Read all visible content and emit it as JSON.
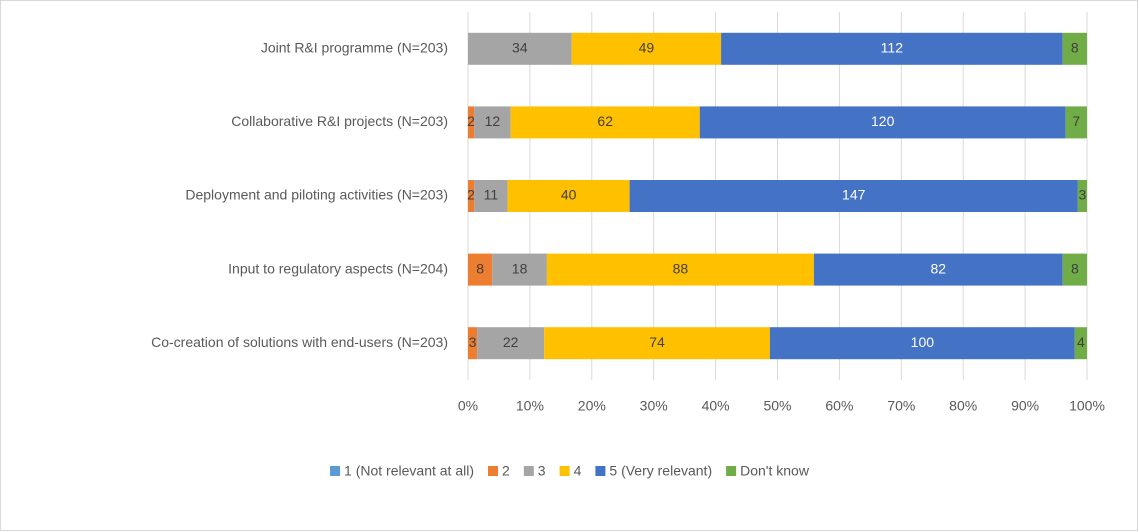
{
  "chart_data": {
    "type": "bar",
    "orientation": "horizontal",
    "stacking": "percent",
    "categories": [
      "Joint R&I programme (N=203)",
      "Collaborative R&I projects (N=203)",
      "Deployment and piloting activities (N=203)",
      "Input to regulatory aspects (N=204)",
      "Co-creation of solutions with end-users (N=203)"
    ],
    "series": [
      {
        "name": "1 (Not relevant at all)",
        "color": "#5b9bd5",
        "values": [
          0,
          0,
          0,
          0,
          0
        ]
      },
      {
        "name": "2",
        "color": "#ed7d31",
        "values": [
          0,
          2,
          2,
          8,
          3
        ]
      },
      {
        "name": "3",
        "color": "#a5a5a5",
        "values": [
          34,
          12,
          11,
          18,
          22
        ]
      },
      {
        "name": "4",
        "color": "#ffc000",
        "values": [
          49,
          62,
          40,
          88,
          74
        ]
      },
      {
        "name": "5 (Very relevant)",
        "color": "#4472c4",
        "values": [
          112,
          120,
          147,
          82,
          100
        ]
      },
      {
        "name": "Don't know",
        "color": "#70ad47",
        "values": [
          8,
          7,
          3,
          8,
          4
        ]
      }
    ],
    "xlim": [
      0,
      100
    ],
    "xticks": [
      {
        "value": 0,
        "label": "0%"
      },
      {
        "value": 10,
        "label": "10%"
      },
      {
        "value": 20,
        "label": "20%"
      },
      {
        "value": 30,
        "label": "30%"
      },
      {
        "value": 40,
        "label": "40%"
      },
      {
        "value": 50,
        "label": "50%"
      },
      {
        "value": 60,
        "label": "60%"
      },
      {
        "value": 70,
        "label": "70%"
      },
      {
        "value": 80,
        "label": "80%"
      },
      {
        "value": 90,
        "label": "90%"
      },
      {
        "value": 100,
        "label": "100%"
      }
    ],
    "grid": true,
    "legend": "bottom"
  }
}
